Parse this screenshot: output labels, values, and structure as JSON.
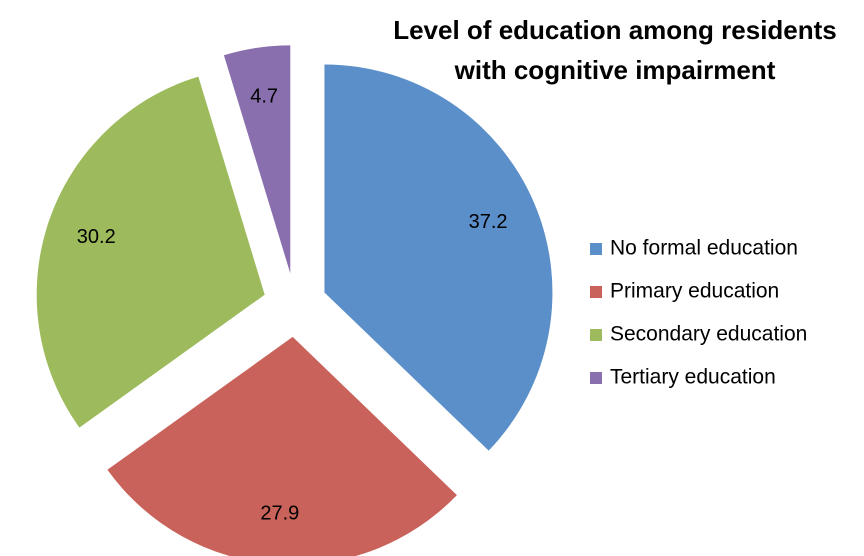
{
  "chart_data": {
    "type": "pie",
    "title": [
      "Level of education among residents",
      "with cognitive impairment"
    ],
    "categories": [
      "No formal education",
      "Primary education",
      "Secondary education",
      "Tertiary education"
    ],
    "values": [
      37.2,
      27.9,
      30.2,
      4.7
    ],
    "colors": [
      "#5b8fc9",
      "#c9625a",
      "#9dbb5c",
      "#8a6fae"
    ],
    "legend": "right"
  }
}
